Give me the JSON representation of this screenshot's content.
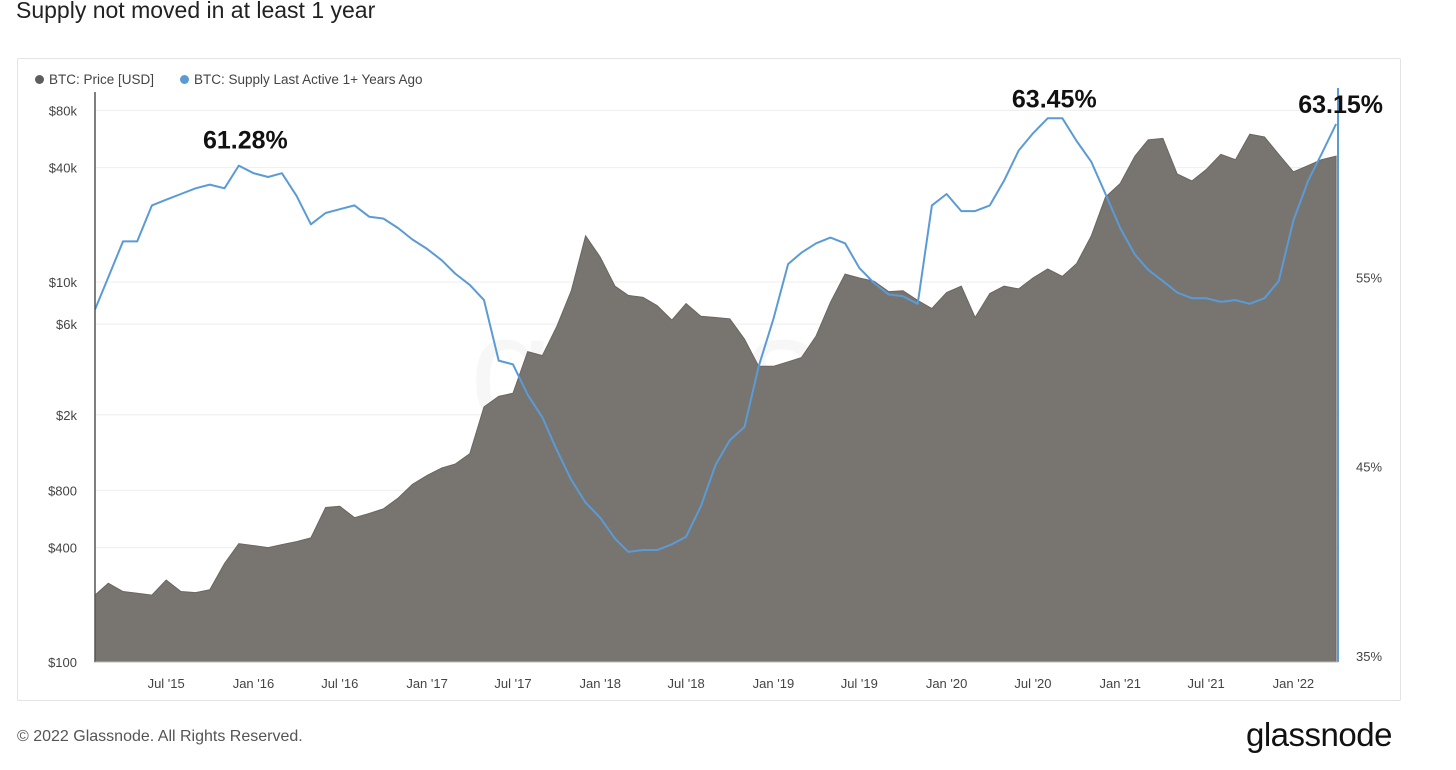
{
  "page": {
    "title": "Supply not moved in at least 1 year",
    "copyright": "© 2022 Glassnode. All Rights Reserved.",
    "brand": "glassnode"
  },
  "colors": {
    "price_fill": "#787470",
    "supply_line": "#5b9bd5",
    "grid": "#eeeeee",
    "axis": "#555555"
  },
  "chart_data": {
    "type": "area",
    "legend": [
      {
        "name": "BTC: Price [USD]",
        "color": "#5d5d5d"
      },
      {
        "name": "BTC: Supply Last Active 1+ Years Ago",
        "color": "#5b9bd5"
      }
    ],
    "legend_position": "top-left",
    "watermark": "glassnode",
    "x_range": [
      "2015-02-01",
      "2022-04-05"
    ],
    "x_ticks": [
      {
        "label": "Jul '15",
        "date": "2015-07-01"
      },
      {
        "label": "Jan '16",
        "date": "2016-01-01"
      },
      {
        "label": "Jul '16",
        "date": "2016-07-01"
      },
      {
        "label": "Jan '17",
        "date": "2017-01-01"
      },
      {
        "label": "Jul '17",
        "date": "2017-07-01"
      },
      {
        "label": "Jan '18",
        "date": "2018-01-01"
      },
      {
        "label": "Jul '18",
        "date": "2018-07-01"
      },
      {
        "label": "Jan '19",
        "date": "2019-01-01"
      },
      {
        "label": "Jul '19",
        "date": "2019-07-01"
      },
      {
        "label": "Jan '20",
        "date": "2020-01-01"
      },
      {
        "label": "Jul '20",
        "date": "2020-07-01"
      },
      {
        "label": "Jan '21",
        "date": "2021-01-01"
      },
      {
        "label": "Jul '21",
        "date": "2021-07-01"
      },
      {
        "label": "Jan '22",
        "date": "2022-01-01"
      }
    ],
    "y_left": {
      "scale": "log",
      "range": [
        100,
        100000
      ],
      "ticks": [
        {
          "label": "$100",
          "value": 100
        },
        {
          "label": "$400",
          "value": 400
        },
        {
          "label": "$800",
          "value": 800
        },
        {
          "label": "$2k",
          "value": 2000
        },
        {
          "label": "$6k",
          "value": 6000
        },
        {
          "label": "$10k",
          "value": 10000
        },
        {
          "label": "$40k",
          "value": 40000
        },
        {
          "label": "$80k",
          "value": 80000
        }
      ]
    },
    "y_right": {
      "scale": "linear",
      "range": [
        35,
        65
      ],
      "ticks": [
        {
          "label": "35%",
          "value": 35
        },
        {
          "label": "45%",
          "value": 45
        },
        {
          "label": "55%",
          "value": 55
        }
      ]
    },
    "grid": true,
    "series": [
      {
        "name": "BTC: Price [USD]",
        "axis": "left",
        "style": "area",
        "points": [
          [
            "2015-02-01",
            225
          ],
          [
            "2015-03-01",
            260
          ],
          [
            "2015-04-01",
            235
          ],
          [
            "2015-05-01",
            230
          ],
          [
            "2015-06-01",
            225
          ],
          [
            "2015-07-01",
            270
          ],
          [
            "2015-08-01",
            235
          ],
          [
            "2015-09-01",
            232
          ],
          [
            "2015-10-01",
            240
          ],
          [
            "2015-11-01",
            330
          ],
          [
            "2015-12-01",
            420
          ],
          [
            "2016-01-01",
            410
          ],
          [
            "2016-02-01",
            400
          ],
          [
            "2016-03-01",
            415
          ],
          [
            "2016-04-01",
            430
          ],
          [
            "2016-05-01",
            450
          ],
          [
            "2016-06-01",
            650
          ],
          [
            "2016-07-01",
            660
          ],
          [
            "2016-08-01",
            575
          ],
          [
            "2016-09-01",
            605
          ],
          [
            "2016-10-01",
            640
          ],
          [
            "2016-11-01",
            730
          ],
          [
            "2016-12-01",
            860
          ],
          [
            "2017-01-01",
            960
          ],
          [
            "2017-02-01",
            1050
          ],
          [
            "2017-03-01",
            1100
          ],
          [
            "2017-04-01",
            1250
          ],
          [
            "2017-05-01",
            2200
          ],
          [
            "2017-06-01",
            2500
          ],
          [
            "2017-07-01",
            2600
          ],
          [
            "2017-08-01",
            4300
          ],
          [
            "2017-09-01",
            4100
          ],
          [
            "2017-10-01",
            5800
          ],
          [
            "2017-11-01",
            9000
          ],
          [
            "2017-12-01",
            17500
          ],
          [
            "2018-01-01",
            13500
          ],
          [
            "2018-02-01",
            9500
          ],
          [
            "2018-03-01",
            8500
          ],
          [
            "2018-04-01",
            8300
          ],
          [
            "2018-05-01",
            7500
          ],
          [
            "2018-06-01",
            6300
          ],
          [
            "2018-07-01",
            7700
          ],
          [
            "2018-08-01",
            6600
          ],
          [
            "2018-09-01",
            6500
          ],
          [
            "2018-10-01",
            6400
          ],
          [
            "2018-11-01",
            5000
          ],
          [
            "2018-12-01",
            3600
          ],
          [
            "2019-01-01",
            3600
          ],
          [
            "2019-02-01",
            3800
          ],
          [
            "2019-03-01",
            4000
          ],
          [
            "2019-04-01",
            5200
          ],
          [
            "2019-05-01",
            7800
          ],
          [
            "2019-06-01",
            11000
          ],
          [
            "2019-07-01",
            10500
          ],
          [
            "2019-08-01",
            10100
          ],
          [
            "2019-09-01",
            8900
          ],
          [
            "2019-10-01",
            9000
          ],
          [
            "2019-11-01",
            8000
          ],
          [
            "2019-12-01",
            7250
          ],
          [
            "2020-01-01",
            8800
          ],
          [
            "2020-02-01",
            9500
          ],
          [
            "2020-03-01",
            6500
          ],
          [
            "2020-04-01",
            8700
          ],
          [
            "2020-05-01",
            9500
          ],
          [
            "2020-06-01",
            9200
          ],
          [
            "2020-07-01",
            10500
          ],
          [
            "2020-08-01",
            11700
          ],
          [
            "2020-09-01",
            10700
          ],
          [
            "2020-10-01",
            12500
          ],
          [
            "2020-11-01",
            17500
          ],
          [
            "2020-12-01",
            28000
          ],
          [
            "2021-01-01",
            33000
          ],
          [
            "2021-02-01",
            46000
          ],
          [
            "2021-03-01",
            56000
          ],
          [
            "2021-04-01",
            57000
          ],
          [
            "2021-05-01",
            37000
          ],
          [
            "2021-06-01",
            34000
          ],
          [
            "2021-07-01",
            39000
          ],
          [
            "2021-08-01",
            47000
          ],
          [
            "2021-09-01",
            44000
          ],
          [
            "2021-10-01",
            60000
          ],
          [
            "2021-11-01",
            58000
          ],
          [
            "2021-12-01",
            47000
          ],
          [
            "2022-01-01",
            38000
          ],
          [
            "2022-02-01",
            41000
          ],
          [
            "2022-03-01",
            44000
          ],
          [
            "2022-04-01",
            46000
          ]
        ]
      },
      {
        "name": "BTC: Supply Last Active 1+ Years Ago",
        "axis": "right",
        "style": "line",
        "points": [
          [
            "2015-02-01",
            53.3
          ],
          [
            "2015-03-01",
            55.0
          ],
          [
            "2015-04-01",
            56.9
          ],
          [
            "2015-05-01",
            56.9
          ],
          [
            "2015-06-01",
            58.8
          ],
          [
            "2015-07-01",
            59.1
          ],
          [
            "2015-08-01",
            59.4
          ],
          [
            "2015-09-01",
            59.7
          ],
          [
            "2015-10-01",
            59.9
          ],
          [
            "2015-11-01",
            59.7
          ],
          [
            "2015-12-01",
            60.9
          ],
          [
            "2016-01-01",
            60.5
          ],
          [
            "2016-02-01",
            60.3
          ],
          [
            "2016-03-01",
            60.5
          ],
          [
            "2016-04-01",
            59.3
          ],
          [
            "2016-05-01",
            57.8
          ],
          [
            "2016-06-01",
            58.4
          ],
          [
            "2016-07-01",
            58.6
          ],
          [
            "2016-08-01",
            58.8
          ],
          [
            "2016-09-01",
            58.2
          ],
          [
            "2016-10-01",
            58.1
          ],
          [
            "2016-11-01",
            57.6
          ],
          [
            "2016-12-01",
            57.0
          ],
          [
            "2017-01-01",
            56.5
          ],
          [
            "2017-02-01",
            55.9
          ],
          [
            "2017-03-01",
            55.2
          ],
          [
            "2017-04-01",
            54.6
          ],
          [
            "2017-05-01",
            53.8
          ],
          [
            "2017-06-01",
            50.6
          ],
          [
            "2017-07-01",
            50.4
          ],
          [
            "2017-08-01",
            48.8
          ],
          [
            "2017-09-01",
            47.6
          ],
          [
            "2017-10-01",
            45.9
          ],
          [
            "2017-11-01",
            44.3
          ],
          [
            "2017-12-01",
            43.1
          ],
          [
            "2018-01-01",
            42.3
          ],
          [
            "2018-02-01",
            41.2
          ],
          [
            "2018-03-01",
            40.5
          ],
          [
            "2018-04-01",
            40.6
          ],
          [
            "2018-05-01",
            40.6
          ],
          [
            "2018-06-01",
            40.9
          ],
          [
            "2018-07-01",
            41.3
          ],
          [
            "2018-08-01",
            42.9
          ],
          [
            "2018-09-01",
            45.1
          ],
          [
            "2018-10-01",
            46.4
          ],
          [
            "2018-11-01",
            47.1
          ],
          [
            "2018-12-01",
            50.3
          ],
          [
            "2019-01-01",
            52.8
          ],
          [
            "2019-02-01",
            55.7
          ],
          [
            "2019-03-01",
            56.3
          ],
          [
            "2019-04-01",
            56.8
          ],
          [
            "2019-05-01",
            57.1
          ],
          [
            "2019-06-01",
            56.8
          ],
          [
            "2019-07-01",
            55.5
          ],
          [
            "2019-08-01",
            54.7
          ],
          [
            "2019-09-01",
            54.1
          ],
          [
            "2019-10-01",
            54.0
          ],
          [
            "2019-11-01",
            53.6
          ],
          [
            "2019-12-01",
            58.8
          ],
          [
            "2020-01-01",
            59.4
          ],
          [
            "2020-02-01",
            58.5
          ],
          [
            "2020-03-01",
            58.5
          ],
          [
            "2020-04-01",
            58.8
          ],
          [
            "2020-05-01",
            60.1
          ],
          [
            "2020-06-01",
            61.7
          ],
          [
            "2020-07-01",
            62.6
          ],
          [
            "2020-08-01",
            63.4
          ],
          [
            "2020-09-01",
            63.4
          ],
          [
            "2020-10-01",
            62.2
          ],
          [
            "2020-11-01",
            61.1
          ],
          [
            "2020-12-01",
            59.4
          ],
          [
            "2021-01-01",
            57.6
          ],
          [
            "2021-02-01",
            56.2
          ],
          [
            "2021-03-01",
            55.4
          ],
          [
            "2021-04-01",
            54.8
          ],
          [
            "2021-05-01",
            54.2
          ],
          [
            "2021-06-01",
            53.9
          ],
          [
            "2021-07-01",
            53.9
          ],
          [
            "2021-08-01",
            53.7
          ],
          [
            "2021-09-01",
            53.8
          ],
          [
            "2021-10-01",
            53.6
          ],
          [
            "2021-11-01",
            53.9
          ],
          [
            "2021-12-01",
            54.8
          ],
          [
            "2022-01-01",
            58.0
          ],
          [
            "2022-02-01",
            60.1
          ],
          [
            "2022-03-01",
            61.5
          ],
          [
            "2022-04-01",
            63.1
          ]
        ]
      }
    ],
    "annotations": [
      {
        "text": "61.28%",
        "date": "2015-12-15",
        "value": 61.28
      },
      {
        "text": "63.45%",
        "date": "2020-08-15",
        "value": 63.45
      },
      {
        "text": "63.15%",
        "date": "2022-03-25",
        "value": 63.15
      }
    ]
  }
}
